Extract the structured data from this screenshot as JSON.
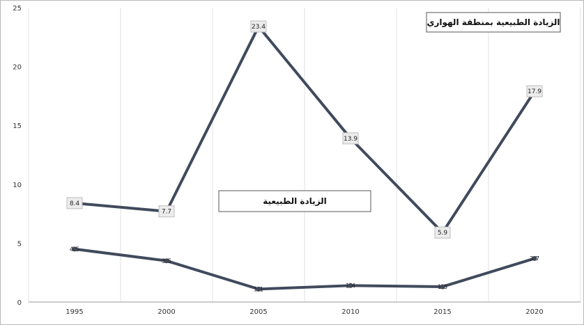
{
  "chart_data": {
    "type": "line",
    "title": "الزيادة الطبيعية بمنطقة الهواري",
    "xlabel": "",
    "ylabel": "",
    "categories": [
      "1995",
      "2000",
      "2005",
      "2010",
      "2015",
      "2020"
    ],
    "ylim": [
      0,
      25
    ],
    "yticks": [
      0,
      5,
      10,
      15,
      20,
      25
    ],
    "grid": "vertical",
    "line_color": "#404a5c",
    "series": [
      {
        "name": "",
        "values": [
          8.4,
          7.7,
          23.4,
          13.9,
          5.9,
          17.9
        ],
        "labels": [
          "8.4",
          "7.7",
          "23.4",
          "13.9",
          "5.9",
          "17.9"
        ]
      },
      {
        "name": "",
        "values": [
          4.5,
          3.5,
          1.1,
          1.4,
          1.3,
          3.7
        ],
        "labels": [
          "4.5",
          "3.5",
          "1.1",
          "1.4",
          "1.3",
          "3.7"
        ]
      }
    ],
    "annotation": "الزيادة الطبيعية"
  }
}
